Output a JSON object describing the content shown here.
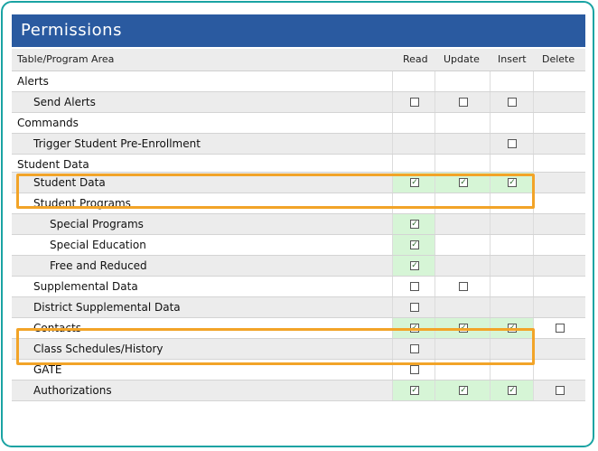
{
  "window": {
    "title": "Permissions"
  },
  "table": {
    "columns": [
      "Table/Program Area",
      "Read",
      "Update",
      "Insert",
      "Delete"
    ],
    "rows": [
      {
        "label": "Alerts",
        "indent": 0
      },
      {
        "label": "Send Alerts",
        "indent": 1,
        "read": "unchecked",
        "update": "unchecked",
        "insert": "unchecked",
        "delete": "none"
      },
      {
        "label": "Commands",
        "indent": 0
      },
      {
        "label": "Trigger Student Pre-Enrollment",
        "indent": 1,
        "insert": "unchecked"
      },
      {
        "label": "Student Data",
        "indent": 0
      },
      {
        "label": "Student Data",
        "indent": 1,
        "read": "checked",
        "update": "checked",
        "insert": "checked",
        "highlight": true
      },
      {
        "label": "Student Programs",
        "indent": 1
      },
      {
        "label": "Special Programs",
        "indent": 2,
        "read": "checked"
      },
      {
        "label": "Special Education",
        "indent": 2,
        "read": "checked"
      },
      {
        "label": "Free and Reduced",
        "indent": 2,
        "read": "checked"
      },
      {
        "label": "Supplemental Data",
        "indent": 1,
        "read": "unchecked",
        "update": "unchecked"
      },
      {
        "label": "District Supplemental Data",
        "indent": 1,
        "read": "unchecked"
      },
      {
        "label": "Contacts",
        "indent": 1,
        "read": "checked",
        "update": "checked",
        "insert": "checked",
        "delete": "unchecked",
        "highlight": true
      },
      {
        "label": "Class Schedules/History",
        "indent": 1,
        "read": "unchecked"
      },
      {
        "label": "GATE",
        "indent": 1,
        "read": "unchecked"
      },
      {
        "label": "Authorizations",
        "indent": 1,
        "read": "checked",
        "update": "checked",
        "insert": "checked",
        "delete": "unchecked"
      }
    ]
  },
  "colors": {
    "header_bar": "#2a5aa0",
    "highlight": "#f2a428",
    "checked_bg": "#d6f5d6",
    "frame": "#1aa3a3"
  }
}
